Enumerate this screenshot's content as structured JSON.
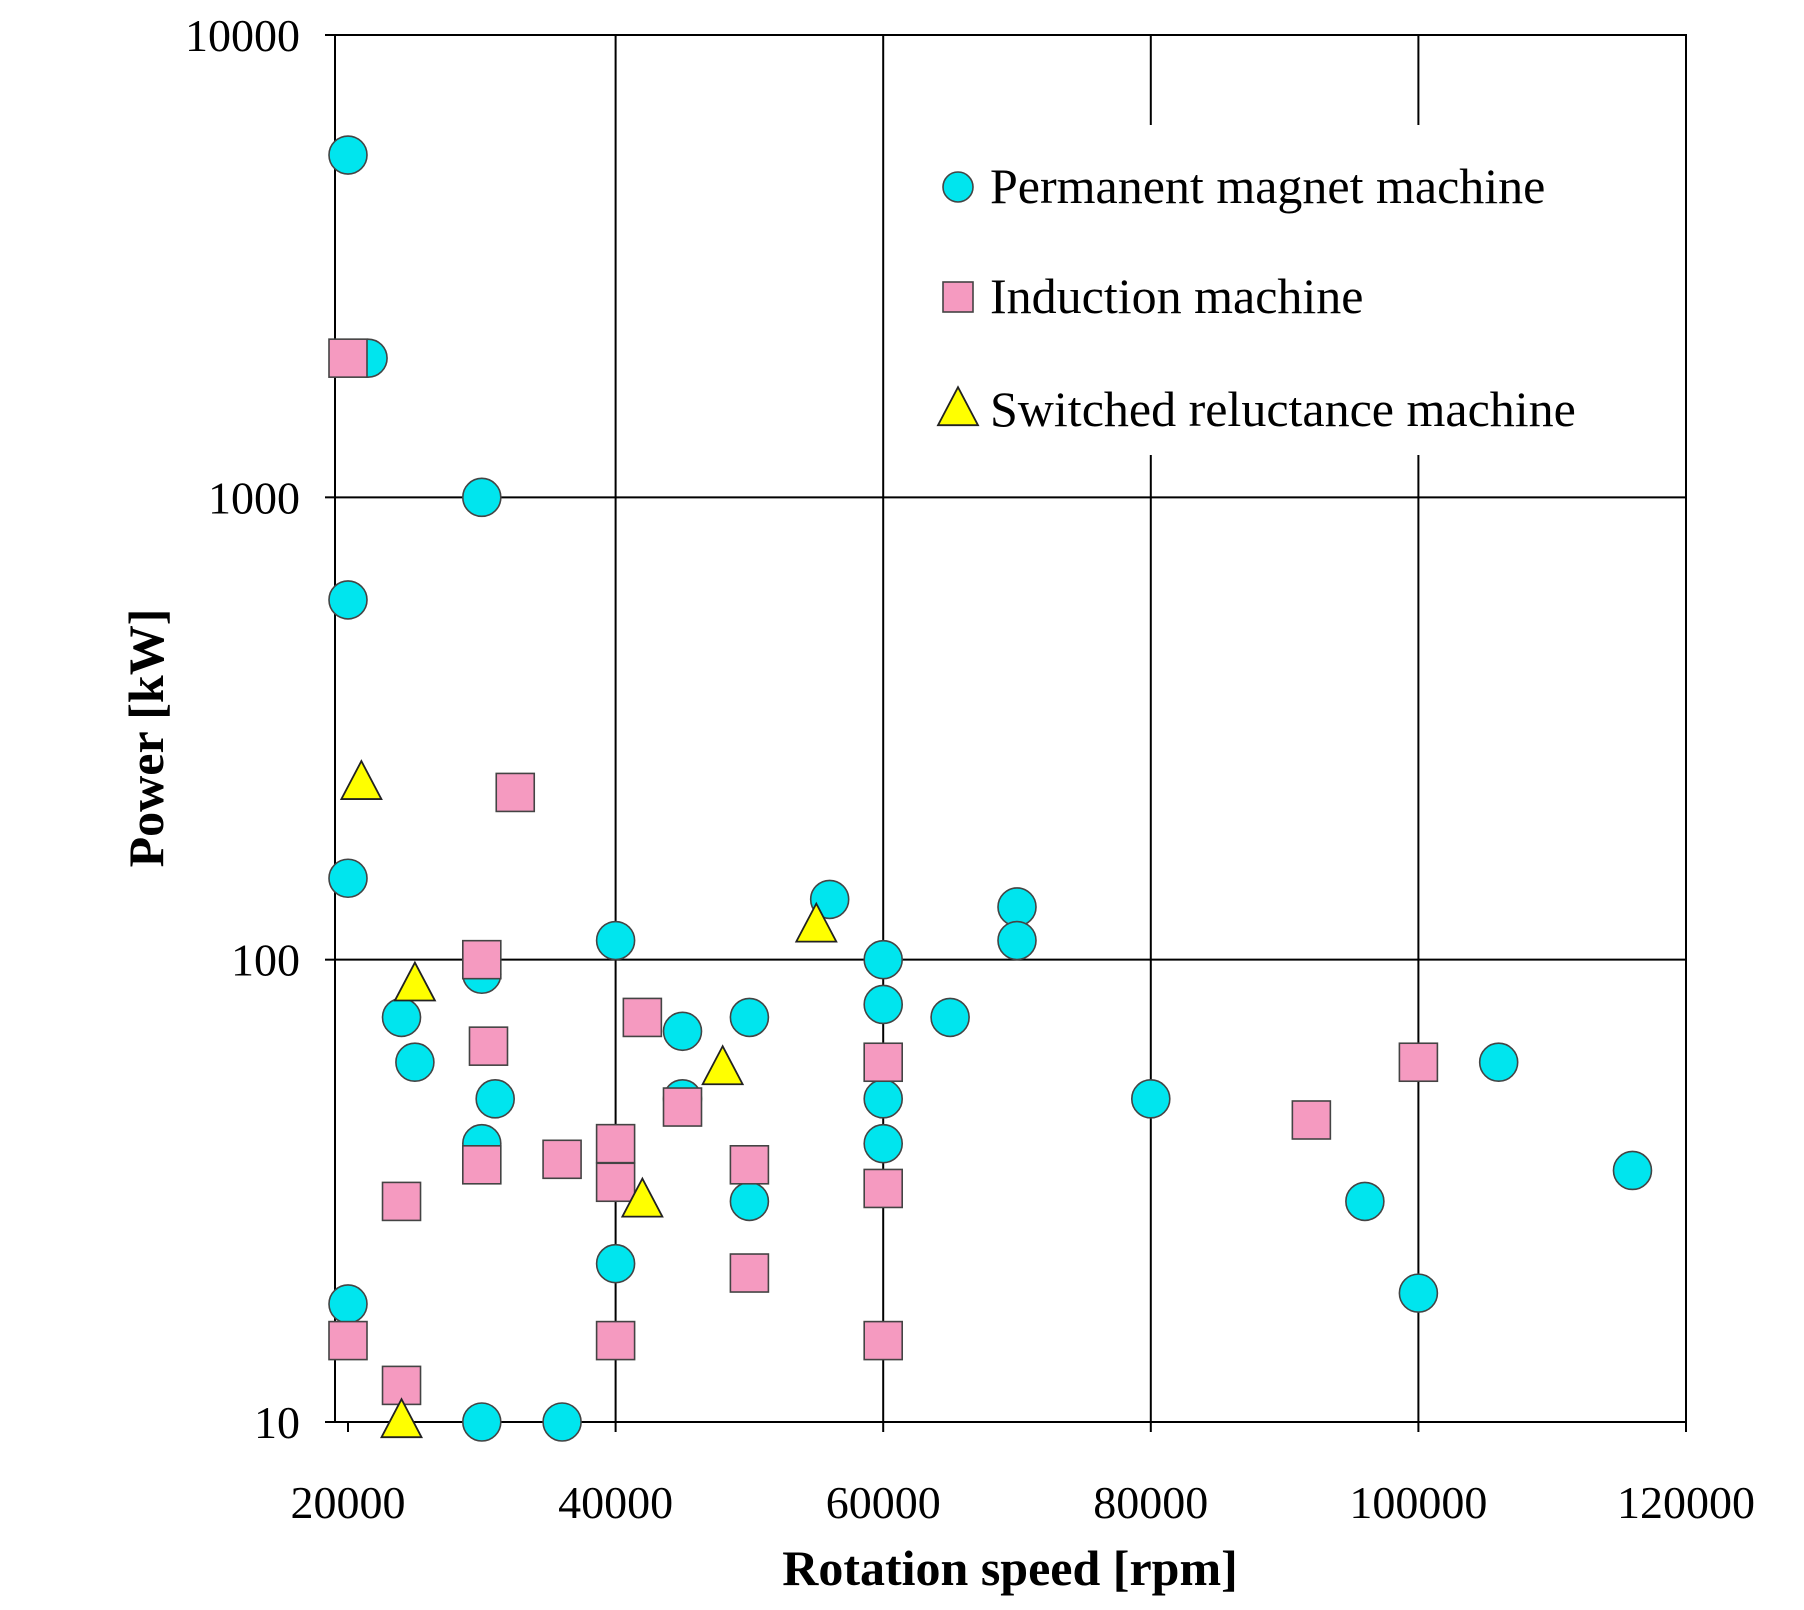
{
  "chart_data": {
    "type": "scatter",
    "xlabel": "Rotation speed [rpm]",
    "ylabel": "Power [kW]",
    "xlim": [
      20000,
      120000
    ],
    "ylim": [
      10,
      10000
    ],
    "y_scale": "log",
    "x_ticks": [
      20000,
      40000,
      60000,
      80000,
      100000,
      120000
    ],
    "x_tick_labels": [
      "20000",
      "40000",
      "60000",
      "80000",
      "100000",
      "120000"
    ],
    "y_ticks": [
      10,
      100,
      1000,
      10000
    ],
    "y_tick_labels": [
      "10",
      "100",
      "1000",
      "10000"
    ],
    "grid": true,
    "legend_position": "top-right",
    "series": [
      {
        "name": "Permanent magnet machine",
        "marker": "circle",
        "color": "#00E5EE",
        "points": [
          [
            20000,
            5500
          ],
          [
            21500,
            2000
          ],
          [
            20000,
            600
          ],
          [
            20000,
            150
          ],
          [
            20000,
            18
          ],
          [
            30000,
            1000
          ],
          [
            30000,
            93
          ],
          [
            30000,
            40
          ],
          [
            31000,
            50
          ],
          [
            30000,
            10
          ],
          [
            24000,
            75
          ],
          [
            25000,
            60
          ],
          [
            36000,
            10
          ],
          [
            40000,
            110
          ],
          [
            40000,
            22
          ],
          [
            45000,
            70
          ],
          [
            45000,
            50
          ],
          [
            50000,
            75
          ],
          [
            50000,
            30
          ],
          [
            56000,
            135
          ],
          [
            60000,
            100
          ],
          [
            60000,
            80
          ],
          [
            60000,
            50
          ],
          [
            60000,
            40
          ],
          [
            65000,
            75
          ],
          [
            70000,
            130
          ],
          [
            70000,
            110
          ],
          [
            80000,
            50
          ],
          [
            96000,
            30
          ],
          [
            100000,
            19
          ],
          [
            106000,
            60
          ],
          [
            116000,
            35
          ]
        ]
      },
      {
        "name": "Induction machine",
        "marker": "square",
        "color": "#F59AC0",
        "points": [
          [
            20000,
            2000
          ],
          [
            20000,
            15
          ],
          [
            24000,
            30
          ],
          [
            24000,
            12
          ],
          [
            30000,
            100
          ],
          [
            30000,
            36
          ],
          [
            30500,
            65
          ],
          [
            32500,
            230
          ],
          [
            36000,
            37
          ],
          [
            40000,
            40
          ],
          [
            40000,
            33
          ],
          [
            40000,
            15
          ],
          [
            42000,
            75
          ],
          [
            45000,
            48
          ],
          [
            50000,
            36
          ],
          [
            50000,
            21
          ],
          [
            60000,
            60
          ],
          [
            60000,
            32
          ],
          [
            60000,
            15
          ],
          [
            92000,
            45
          ],
          [
            100000,
            60
          ]
        ]
      },
      {
        "name": "Switched reluctance machine",
        "marker": "triangle",
        "color": "#FFFF00",
        "points": [
          [
            21000,
            240
          ],
          [
            25000,
            88
          ],
          [
            24000,
            10
          ],
          [
            42000,
            30
          ],
          [
            48000,
            58
          ],
          [
            55000,
            118
          ]
        ]
      }
    ]
  }
}
